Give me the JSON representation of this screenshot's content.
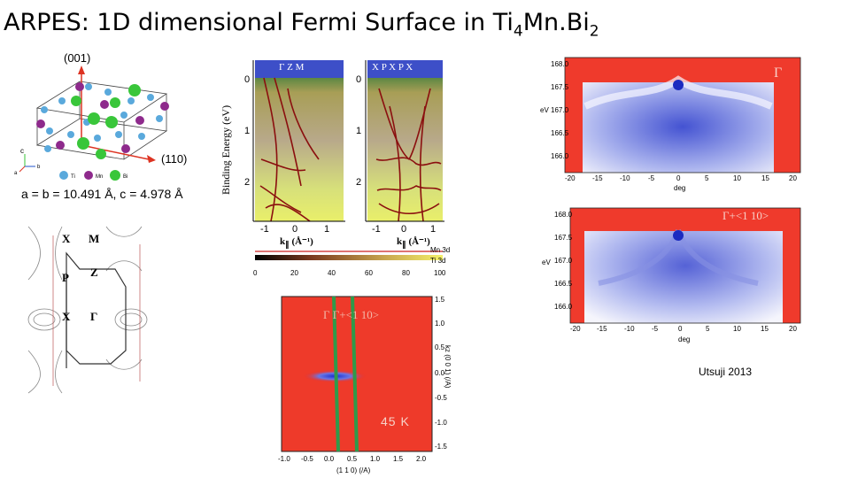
{
  "title": {
    "main": "ARPES:   1D dimensional Fermi Surface in Ti",
    "sub1": "4",
    "mid": "Mn.Bi",
    "sub2": "2"
  },
  "crystal": {
    "direction_001": "(001)",
    "direction_110": "(110)",
    "lattice": "a = b = 10.491 Å, c = 4.978 Å",
    "legend": [
      "Ti",
      "Mn",
      "Bi"
    ],
    "axis_labels": [
      "c",
      "a",
      "b"
    ],
    "colors": {
      "Ti": "#5aa9dc",
      "Mn": "#8e2a8c",
      "Bi": "#39c63a"
    }
  },
  "bz": {
    "labels": [
      "X",
      "M",
      "P",
      "Z",
      "X",
      "Γ"
    ]
  },
  "dispersion": {
    "ylabel": "Binding Energy (eV)",
    "yticks": [
      "0",
      "1",
      "2"
    ],
    "xticks": [
      "-1",
      "0",
      "1"
    ],
    "left_panel_top": "Γ  Z  M",
    "right_panel_top": "X  P  X  P  X",
    "xlabel": "k",
    "xlabel_sub": "∥",
    "xlabel_unit": " (Å⁻¹)",
    "legend_mn": "Mn 3d",
    "legend_ti": "Ti 3d",
    "colorbar_ticks": [
      "0",
      "20",
      "40",
      "60",
      "80",
      "100"
    ]
  },
  "fermi_map": {
    "labels_top": "Γ  Γ+<1 10>",
    "temperature": "45 K",
    "yaxis_label": "kz (0 0 1) (/A)",
    "yticks": [
      "1.5",
      "1.0",
      "0.5",
      "0.0",
      "-0.5",
      "-1.0",
      "-1.5"
    ],
    "xticks": [
      "-1.0",
      "-0.5",
      "0.0",
      "0.5",
      "1.0",
      "1.5",
      "2.0"
    ],
    "xaxis_label": "(1 1 0) (/A)"
  },
  "edc_top": {
    "label": "Γ",
    "yaxis": "eV",
    "yticks": [
      "168.0",
      "167.5",
      "167.0",
      "166.5",
      "166.0"
    ],
    "xticks": [
      "-20",
      "-15",
      "-10",
      "-5",
      "0",
      "5",
      "10",
      "15",
      "20"
    ],
    "xaxis": "deg"
  },
  "edc_bottom": {
    "label": "Γ+<1 10>",
    "yaxis": "eV",
    "yticks": [
      "168.0",
      "167.5",
      "167.0",
      "166.5",
      "166.0"
    ],
    "xticks": [
      "-20",
      "-15",
      "-10",
      "-5",
      "0",
      "5",
      "10",
      "15",
      "20"
    ],
    "xaxis": "deg"
  },
  "credit": "Utsuji 2013"
}
